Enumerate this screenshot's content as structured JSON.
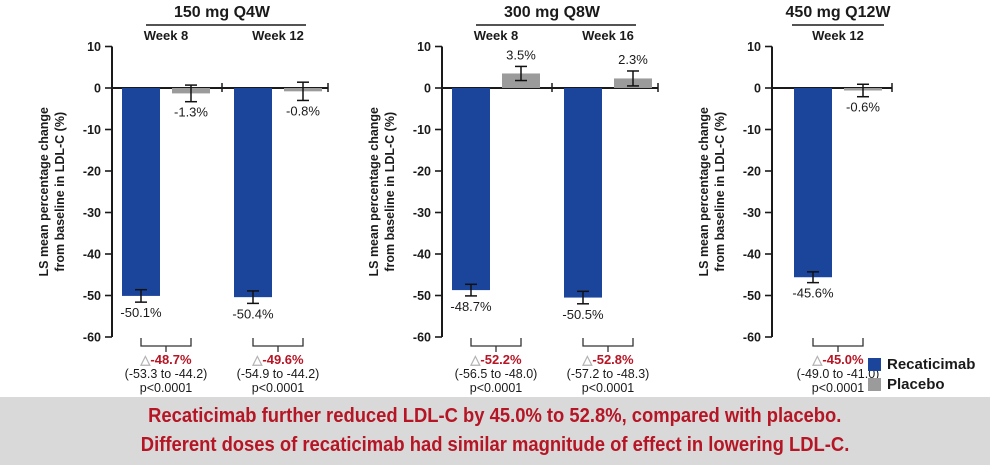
{
  "caption": {
    "bg": "#d9d9d9",
    "color": "#b51524",
    "lines": [
      "Recaticimab further reduced LDL-C by 45.0% to 52.8%, compared with placebo.",
      "Different doses of recaticimab had similar magnitude of effect in lowering LDL-C."
    ]
  },
  "legend": {
    "items": [
      {
        "label": "Recaticimab",
        "color": "#1b459b"
      },
      {
        "label": "Placebo",
        "color": "#9b9b9b"
      }
    ]
  },
  "chart_data": {
    "type": "bar",
    "ylabel_lines": [
      "LS mean percentage change",
      "from baseline in LDL-C (%)"
    ],
    "ylim": [
      -60,
      10
    ],
    "yticks": [
      10,
      0,
      -10,
      -20,
      -30,
      -40,
      -50,
      -60
    ],
    "grid": false,
    "legend_position": "bottom-right",
    "series_names": [
      "Recaticimab",
      "Placebo"
    ],
    "colors": {
      "recaticimab": "#1b459b",
      "placebo": "#9b9b9b",
      "axis": "#1a1a1a",
      "delta_red": "#b51524",
      "triangle": "#b3b3b3"
    },
    "delta_symbol": "△",
    "panels": [
      {
        "title": "150 mg Q4W",
        "groups": [
          {
            "week": "Week 8",
            "recaticimab": {
              "value": -50.1,
              "err": 1.5,
              "label": "-50.1%"
            },
            "placebo": {
              "value": -1.3,
              "err": 2.0,
              "label": "-1.3%"
            },
            "delta": {
              "label": "-48.7%",
              "ci": "(-53.3 to -44.2)",
              "p": "p<0.0001"
            }
          },
          {
            "week": "Week 12",
            "recaticimab": {
              "value": -50.4,
              "err": 1.5,
              "label": "-50.4%"
            },
            "placebo": {
              "value": -0.8,
              "err": 2.2,
              "label": "-0.8%"
            },
            "delta": {
              "label": "-49.6%",
              "ci": "(-54.9 to -44.2)",
              "p": "p<0.0001"
            }
          }
        ]
      },
      {
        "title": "300 mg Q8W",
        "groups": [
          {
            "week": "Week 8",
            "recaticimab": {
              "value": -48.7,
              "err": 1.4,
              "label": "-48.7%"
            },
            "placebo": {
              "value": 3.5,
              "err": 1.7,
              "label": "3.5%"
            },
            "delta": {
              "label": "-52.2%",
              "ci": "(-56.5 to -48.0)",
              "p": "p<0.0001"
            }
          },
          {
            "week": "Week 16",
            "recaticimab": {
              "value": -50.5,
              "err": 1.5,
              "label": "-50.5%"
            },
            "placebo": {
              "value": 2.3,
              "err": 1.8,
              "label": "2.3%"
            },
            "delta": {
              "label": "-52.8%",
              "ci": "(-57.2 to -48.3)",
              "p": "p<0.0001"
            }
          }
        ]
      },
      {
        "title": "450 mg Q12W",
        "groups": [
          {
            "week": "Week 12",
            "recaticimab": {
              "value": -45.6,
              "err": 1.3,
              "label": "-45.6%"
            },
            "placebo": {
              "value": -0.6,
              "err": 1.5,
              "label": "-0.6%"
            },
            "delta": {
              "label": "-45.0%",
              "ci": "(-49.0 to -41.0)",
              "p": "p<0.0001"
            }
          }
        ]
      }
    ]
  }
}
